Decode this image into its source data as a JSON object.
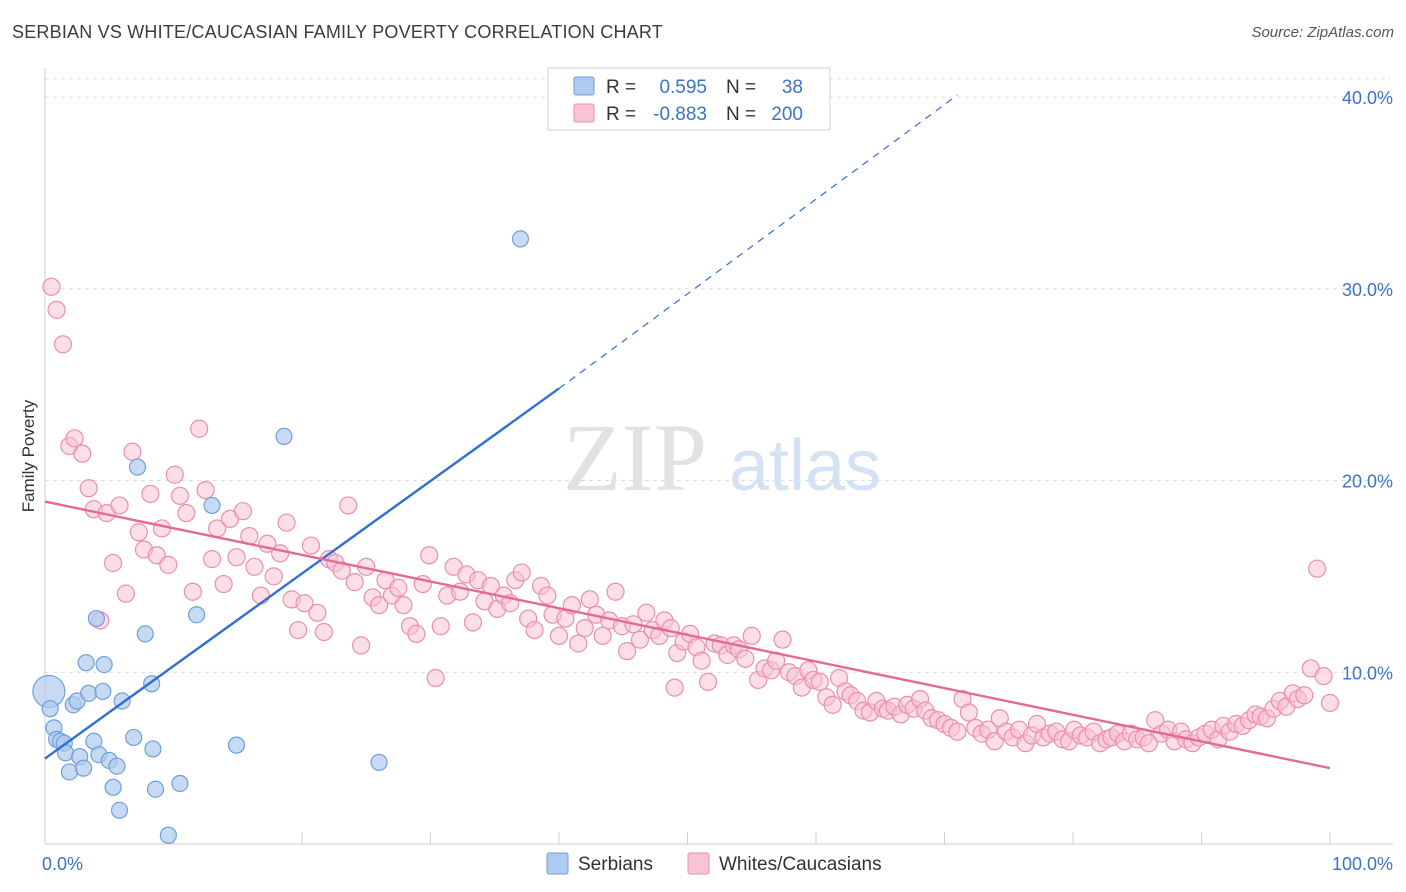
{
  "title": "SERBIAN VS WHITE/CAUCASIAN FAMILY POVERTY CORRELATION CHART",
  "source": "Source: ZipAtlas.com",
  "watermark": {
    "zip": "ZIP",
    "atlas": "atlas"
  },
  "colors": {
    "blue_fill": "#aecbf0",
    "blue_stroke": "#6f9fdc",
    "blue_line": "#2f6fcf",
    "pink_fill": "#f8c3d3",
    "pink_stroke": "#ea8fae",
    "pink_line": "#e46a93",
    "grid": "#dcdcdc",
    "tick_text": "#3b73c6"
  },
  "legend": {
    "rows": [
      {
        "r_label": "R =",
        "r_value": "0.595",
        "n_label": "N =",
        "n_value": "38"
      },
      {
        "r_label": "R =",
        "r_value": "-0.883",
        "n_label": "N =",
        "n_value": "200"
      }
    ]
  },
  "bottom_legend": {
    "serbians": "Serbians",
    "whites": "Whites/Caucasians"
  },
  "chart_data": {
    "type": "scatter",
    "title": "SERBIAN VS WHITE/CAUCASIAN FAMILY POVERTY CORRELATION CHART",
    "xlabel": "",
    "ylabel": "Family Poverty",
    "xlim": [
      0,
      100
    ],
    "ylim": [
      0,
      40
    ],
    "x_tick_labels": [
      "0.0%",
      "100.0%"
    ],
    "y_ticks": [
      10,
      20,
      30,
      40
    ],
    "y_tick_labels": [
      "10.0%",
      "20.0%",
      "30.0%",
      "40.0%"
    ],
    "grid": "horizontal dashed",
    "legend_position": "top-center",
    "series": [
      {
        "name": "Serbians",
        "color": "#aecbf0",
        "R": 0.595,
        "N": 38,
        "trend": {
          "x": [
            0,
            40
          ],
          "y": [
            5.5,
            24.8
          ],
          "dashed_to": [
            71,
            40.1
          ]
        },
        "points": [
          [
            0.3,
            9.0
          ],
          [
            0.4,
            8.1
          ],
          [
            0.7,
            7.1
          ],
          [
            0.9,
            6.5
          ],
          [
            1.2,
            6.4
          ],
          [
            1.5,
            6.3
          ],
          [
            1.6,
            5.8
          ],
          [
            1.9,
            4.8
          ],
          [
            2.2,
            8.3
          ],
          [
            2.5,
            8.5
          ],
          [
            2.7,
            5.6
          ],
          [
            3.0,
            5.0
          ],
          [
            3.2,
            10.5
          ],
          [
            3.4,
            8.9
          ],
          [
            3.8,
            6.4
          ],
          [
            4.0,
            12.8
          ],
          [
            4.2,
            5.7
          ],
          [
            4.5,
            9.0
          ],
          [
            4.6,
            10.4
          ],
          [
            5.0,
            5.4
          ],
          [
            5.3,
            4.0
          ],
          [
            5.6,
            5.1
          ],
          [
            5.8,
            2.8
          ],
          [
            6.0,
            8.5
          ],
          [
            6.9,
            6.6
          ],
          [
            7.2,
            20.7
          ],
          [
            7.8,
            12.0
          ],
          [
            8.3,
            9.4
          ],
          [
            8.4,
            6.0
          ],
          [
            8.6,
            3.9
          ],
          [
            9.6,
            1.5
          ],
          [
            10.5,
            4.2
          ],
          [
            11.8,
            13.0
          ],
          [
            13.0,
            18.7
          ],
          [
            14.9,
            6.2
          ],
          [
            18.6,
            22.3
          ],
          [
            26.0,
            5.3
          ],
          [
            37.0,
            32.6
          ]
        ]
      },
      {
        "name": "Whites/Caucasians",
        "color": "#f8c3d3",
        "R": -0.883,
        "N": 200,
        "trend": {
          "x": [
            0,
            100
          ],
          "y": [
            18.9,
            5.0
          ]
        },
        "points": [
          [
            0.5,
            30.1
          ],
          [
            0.9,
            28.9
          ],
          [
            1.4,
            27.1
          ],
          [
            1.9,
            21.8
          ],
          [
            2.3,
            22.2
          ],
          [
            2.9,
            21.4
          ],
          [
            3.4,
            19.6
          ],
          [
            3.8,
            18.5
          ],
          [
            4.3,
            12.7
          ],
          [
            4.8,
            18.3
          ],
          [
            5.3,
            15.7
          ],
          [
            5.8,
            18.7
          ],
          [
            6.3,
            14.1
          ],
          [
            6.8,
            21.5
          ],
          [
            7.3,
            17.3
          ],
          [
            7.7,
            16.4
          ],
          [
            8.2,
            19.3
          ],
          [
            8.7,
            16.1
          ],
          [
            9.1,
            17.5
          ],
          [
            9.6,
            15.6
          ],
          [
            10.1,
            20.3
          ],
          [
            10.5,
            19.2
          ],
          [
            11.0,
            18.3
          ],
          [
            11.5,
            14.2
          ],
          [
            12.0,
            22.7
          ],
          [
            12.5,
            19.5
          ],
          [
            13.0,
            15.9
          ],
          [
            13.4,
            17.5
          ],
          [
            13.9,
            14.6
          ],
          [
            14.4,
            18.0
          ],
          [
            14.9,
            16.0
          ],
          [
            15.4,
            18.4
          ],
          [
            15.9,
            17.1
          ],
          [
            16.3,
            15.5
          ],
          [
            16.8,
            14.0
          ],
          [
            17.3,
            16.7
          ],
          [
            17.8,
            15.0
          ],
          [
            18.3,
            16.2
          ],
          [
            18.8,
            17.8
          ],
          [
            19.2,
            13.8
          ],
          [
            19.7,
            12.2
          ],
          [
            20.2,
            13.6
          ],
          [
            20.7,
            16.6
          ],
          [
            21.2,
            13.1
          ],
          [
            21.7,
            12.1
          ],
          [
            22.1,
            15.9
          ],
          [
            22.6,
            15.7
          ],
          [
            23.1,
            15.3
          ],
          [
            23.6,
            18.7
          ],
          [
            24.1,
            14.7
          ],
          [
            24.6,
            11.4
          ],
          [
            25.0,
            15.5
          ],
          [
            25.5,
            13.9
          ],
          [
            26.0,
            13.5
          ],
          [
            26.5,
            14.8
          ],
          [
            27.0,
            14.0
          ],
          [
            27.5,
            14.4
          ],
          [
            27.9,
            13.5
          ],
          [
            28.4,
            12.4
          ],
          [
            28.9,
            12.0
          ],
          [
            29.4,
            14.6
          ],
          [
            29.9,
            16.1
          ],
          [
            30.4,
            9.7
          ],
          [
            30.8,
            12.4
          ],
          [
            31.3,
            14.0
          ],
          [
            31.8,
            15.5
          ],
          [
            32.3,
            14.2
          ],
          [
            32.8,
            15.1
          ],
          [
            33.3,
            12.6
          ],
          [
            33.7,
            14.8
          ],
          [
            34.2,
            13.7
          ],
          [
            34.7,
            14.5
          ],
          [
            35.2,
            13.3
          ],
          [
            35.7,
            14.0
          ],
          [
            36.2,
            13.6
          ],
          [
            36.6,
            14.8
          ],
          [
            37.1,
            15.2
          ],
          [
            37.6,
            12.8
          ],
          [
            38.1,
            12.2
          ],
          [
            38.6,
            14.5
          ],
          [
            39.1,
            14.0
          ],
          [
            39.5,
            13.0
          ],
          [
            40.0,
            11.9
          ],
          [
            40.5,
            12.8
          ],
          [
            41.0,
            13.5
          ],
          [
            41.5,
            11.5
          ],
          [
            42.0,
            12.3
          ],
          [
            42.4,
            13.8
          ],
          [
            42.9,
            13.0
          ],
          [
            43.4,
            11.9
          ],
          [
            43.9,
            12.7
          ],
          [
            44.4,
            14.2
          ],
          [
            44.9,
            12.4
          ],
          [
            45.3,
            11.1
          ],
          [
            45.8,
            12.5
          ],
          [
            46.3,
            11.7
          ],
          [
            46.8,
            13.1
          ],
          [
            47.3,
            12.2
          ],
          [
            47.8,
            11.9
          ],
          [
            48.2,
            12.7
          ],
          [
            48.7,
            12.3
          ],
          [
            49.2,
            11.0
          ],
          [
            49.7,
            11.6
          ],
          [
            50.2,
            12.0
          ],
          [
            50.7,
            11.3
          ],
          [
            51.1,
            10.6
          ],
          [
            51.6,
            9.5
          ],
          [
            52.1,
            11.5
          ],
          [
            52.6,
            11.4
          ],
          [
            53.1,
            10.9
          ],
          [
            53.6,
            11.4
          ],
          [
            54.0,
            11.2
          ],
          [
            54.5,
            10.7
          ],
          [
            55.0,
            11.9
          ],
          [
            55.5,
            9.6
          ],
          [
            56.0,
            10.2
          ],
          [
            56.5,
            10.1
          ],
          [
            56.9,
            10.6
          ],
          [
            57.4,
            11.7
          ],
          [
            57.9,
            10.0
          ],
          [
            58.4,
            9.8
          ],
          [
            58.9,
            9.2
          ],
          [
            59.4,
            10.1
          ],
          [
            59.8,
            9.6
          ],
          [
            60.3,
            9.5
          ],
          [
            60.8,
            8.7
          ],
          [
            61.3,
            8.3
          ],
          [
            61.8,
            9.7
          ],
          [
            62.3,
            9.0
          ],
          [
            62.7,
            8.8
          ],
          [
            63.2,
            8.5
          ],
          [
            63.7,
            8.0
          ],
          [
            64.2,
            7.9
          ],
          [
            64.7,
            8.5
          ],
          [
            65.2,
            8.1
          ],
          [
            65.6,
            8.0
          ],
          [
            66.1,
            8.2
          ],
          [
            66.6,
            7.8
          ],
          [
            67.1,
            8.3
          ],
          [
            67.6,
            8.1
          ],
          [
            68.1,
            8.6
          ],
          [
            68.5,
            8.0
          ],
          [
            69.0,
            7.6
          ],
          [
            69.5,
            7.5
          ],
          [
            70.0,
            7.3
          ],
          [
            70.5,
            7.1
          ],
          [
            71.0,
            6.9
          ],
          [
            71.4,
            8.6
          ],
          [
            71.9,
            7.9
          ],
          [
            72.4,
            7.1
          ],
          [
            72.9,
            6.8
          ],
          [
            73.4,
            7.0
          ],
          [
            73.9,
            6.4
          ],
          [
            74.3,
            7.6
          ],
          [
            74.8,
            6.9
          ],
          [
            75.3,
            6.6
          ],
          [
            75.8,
            7.0
          ],
          [
            76.3,
            6.3
          ],
          [
            76.8,
            6.7
          ],
          [
            77.2,
            7.3
          ],
          [
            77.7,
            6.6
          ],
          [
            78.2,
            6.8
          ],
          [
            78.7,
            6.9
          ],
          [
            79.2,
            6.5
          ],
          [
            79.7,
            6.4
          ],
          [
            80.1,
            7.0
          ],
          [
            80.6,
            6.7
          ],
          [
            81.1,
            6.6
          ],
          [
            81.6,
            6.9
          ],
          [
            82.1,
            6.3
          ],
          [
            82.6,
            6.5
          ],
          [
            83.0,
            6.6
          ],
          [
            83.5,
            6.8
          ],
          [
            84.0,
            6.4
          ],
          [
            84.5,
            6.8
          ],
          [
            85.0,
            6.5
          ],
          [
            85.5,
            6.6
          ],
          [
            85.9,
            6.3
          ],
          [
            86.4,
            7.5
          ],
          [
            86.9,
            6.8
          ],
          [
            87.4,
            7.0
          ],
          [
            87.9,
            6.4
          ],
          [
            88.4,
            6.9
          ],
          [
            88.8,
            6.5
          ],
          [
            89.3,
            6.3
          ],
          [
            89.8,
            6.6
          ],
          [
            90.3,
            6.8
          ],
          [
            90.8,
            7.0
          ],
          [
            91.3,
            6.5
          ],
          [
            91.7,
            7.2
          ],
          [
            92.2,
            6.9
          ],
          [
            92.7,
            7.3
          ],
          [
            93.2,
            7.2
          ],
          [
            93.7,
            7.5
          ],
          [
            94.2,
            7.8
          ],
          [
            94.6,
            7.7
          ],
          [
            95.1,
            7.6
          ],
          [
            95.6,
            8.1
          ],
          [
            96.1,
            8.5
          ],
          [
            96.6,
            8.2
          ],
          [
            97.1,
            8.9
          ],
          [
            97.5,
            8.6
          ],
          [
            98.0,
            8.8
          ],
          [
            98.5,
            10.2
          ],
          [
            99.0,
            15.4
          ],
          [
            99.5,
            9.8
          ],
          [
            100.0,
            8.4
          ],
          [
            49.0,
            9.2
          ]
        ]
      }
    ]
  }
}
